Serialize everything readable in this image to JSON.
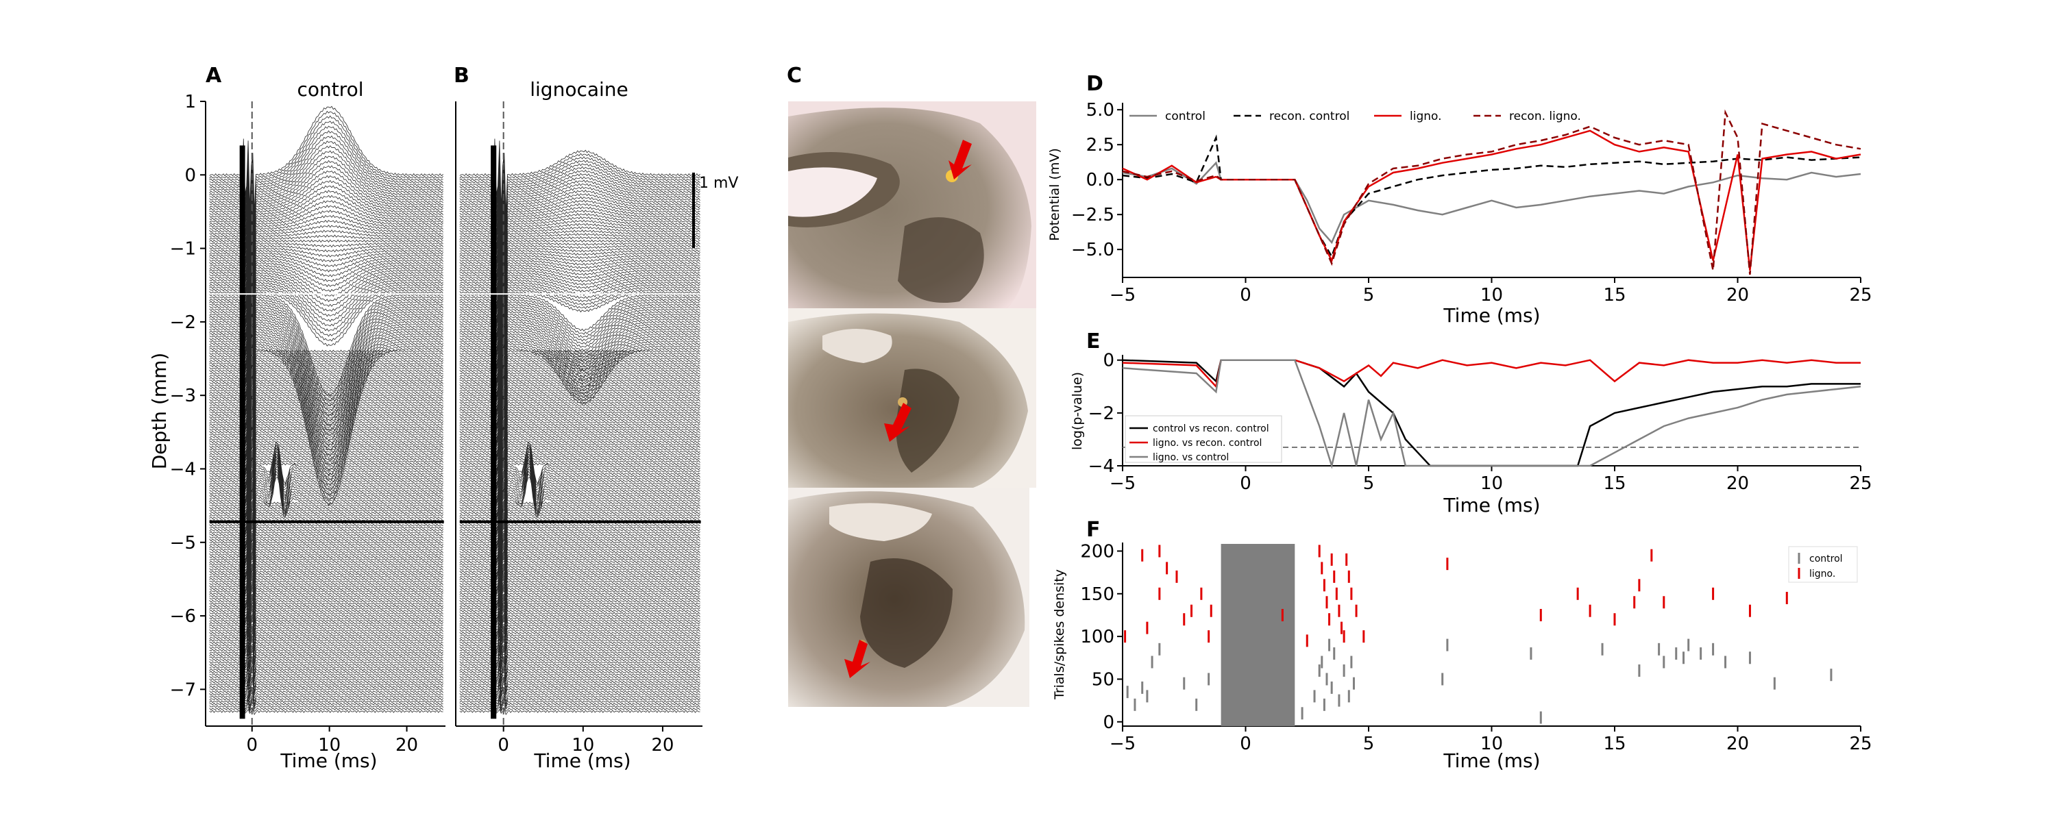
{
  "panels": {
    "A": "A",
    "B": "B",
    "C": "C",
    "D": "D",
    "E": "E",
    "F": "F"
  },
  "colors": {
    "control": "#808080",
    "recon_control": "#000000",
    "ligno": "#e00000",
    "recon_ligno": "#8b0000",
    "trace": "#000000"
  },
  "chart_data": [
    {
      "type": "line",
      "panel": "A",
      "title": "control",
      "xlabel": "Time (ms)",
      "ylabel": "Depth (mm)",
      "xticks": [
        "0",
        "10",
        "20"
      ],
      "yticks": [
        "1",
        "0",
        "−1",
        "−2",
        "−3",
        "−4",
        "−5",
        "−6",
        "−7"
      ],
      "xlim": [
        -6,
        25
      ],
      "ylim": [
        -7.5,
        1
      ],
      "description_series": {
        "n_traces": 220,
        "peak_at_ms": 10,
        "peak_value_mV": 0.85,
        "trough_depth_mm": -2.2
      }
    },
    {
      "type": "line",
      "panel": "B",
      "title": "lignocaine",
      "xlabel": "Time (ms)",
      "xticks": [
        "0",
        "10",
        "20"
      ],
      "xlim": [
        -6,
        25
      ],
      "ylim": [
        -7.5,
        1
      ],
      "scalebar_label": "1 mV"
    },
    {
      "type": "line",
      "panel": "D",
      "xlabel": "Time (ms)",
      "ylabel": "Potential (mV)",
      "xticks": [
        "−5",
        "0",
        "5",
        "10",
        "15",
        "20",
        "25"
      ],
      "yticks": [
        "5.0",
        "2.5",
        "0.0",
        "−2.5",
        "−5.0"
      ],
      "xlim": [
        -5,
        25
      ],
      "ylim": [
        -7,
        5.5
      ],
      "legend": [
        "control",
        "recon. control",
        "ligno.",
        "recon. ligno."
      ],
      "series": [
        {
          "name": "control",
          "x": [
            -5,
            -4,
            -3,
            -2,
            -1.2,
            -1,
            2,
            2.5,
            3,
            3.5,
            4,
            5,
            6,
            7,
            8,
            9,
            10,
            11,
            12,
            13,
            14,
            15,
            16,
            17,
            18,
            19,
            20,
            21,
            22,
            23,
            24,
            25
          ],
          "y": [
            0.5,
            0.2,
            0.8,
            -0.3,
            1.2,
            0,
            0,
            -1.5,
            -3.5,
            -4.5,
            -2.5,
            -1.5,
            -1.8,
            -2.2,
            -2.5,
            -2,
            -1.5,
            -2,
            -1.8,
            -1.5,
            -1.2,
            -1,
            -0.8,
            -1,
            -0.5,
            -0.2,
            0.3,
            0.1,
            0,
            0.5,
            0.2,
            0.4
          ]
        },
        {
          "name": "recon. control",
          "x": [
            -5,
            -4,
            -3,
            -2,
            -1.2,
            -1,
            2,
            2.5,
            3,
            3.5,
            4,
            5,
            6,
            7,
            8,
            9,
            10,
            11,
            12,
            13,
            14,
            15,
            16,
            17,
            18,
            19,
            20,
            21,
            22,
            23,
            24,
            25
          ],
          "y": [
            0.3,
            0.1,
            0.4,
            -0.2,
            3.0,
            0,
            0,
            -2,
            -4,
            -5.5,
            -3,
            -1,
            -0.5,
            0,
            0.3,
            0.5,
            0.7,
            0.8,
            1,
            0.9,
            1.1,
            1.2,
            1.3,
            1.1,
            1.2,
            1.3,
            1.5,
            1.4,
            1.6,
            1.4,
            1.5,
            1.6
          ]
        },
        {
          "name": "ligno.",
          "x": [
            -5,
            -4,
            -3,
            -2,
            -1.2,
            -1,
            2,
            2.5,
            3,
            3.5,
            4,
            5,
            6,
            7,
            8,
            9,
            10,
            11,
            12,
            13,
            14,
            15,
            16,
            17,
            18,
            19,
            20,
            20.5,
            21,
            22,
            23,
            24,
            25
          ],
          "y": [
            0.8,
            0,
            1.0,
            -0.2,
            0.2,
            0,
            0,
            -2,
            -4,
            -5.8,
            -3,
            -0.5,
            0.5,
            0.8,
            1.2,
            1.5,
            1.8,
            2.2,
            2.5,
            3.0,
            3.5,
            2.5,
            2.0,
            2.3,
            2.0,
            -5.8,
            1.8,
            -6.5,
            1.5,
            1.8,
            2.0,
            1.5,
            1.8
          ]
        },
        {
          "name": "recon. ligno.",
          "x": [
            -5,
            -4,
            -3,
            -2,
            -1.2,
            -1,
            2,
            2.5,
            3,
            3.5,
            4,
            5,
            6,
            7,
            8,
            9,
            10,
            11,
            12,
            13,
            14,
            15,
            16,
            17,
            18,
            19,
            19.5,
            20,
            20.5,
            21,
            22,
            23,
            24,
            25
          ],
          "y": [
            0.6,
            0.2,
            0.6,
            -0.1,
            0.3,
            0,
            0,
            -2,
            -4,
            -6.0,
            -3.2,
            -0.3,
            0.8,
            1.0,
            1.5,
            1.8,
            2.0,
            2.5,
            2.8,
            3.2,
            3.8,
            3.0,
            2.5,
            2.8,
            2.5,
            -6.5,
            4.8,
            3.0,
            -6.8,
            4.0,
            3.5,
            3.0,
            2.5,
            2.2
          ]
        }
      ]
    },
    {
      "type": "line",
      "panel": "E",
      "xlabel": "Time (ms)",
      "ylabel": "log(p-value)",
      "xticks": [
        "−5",
        "0",
        "5",
        "10",
        "15",
        "20",
        "25"
      ],
      "yticks": [
        "0",
        "−2",
        "−4"
      ],
      "xlim": [
        -5,
        25
      ],
      "ylim": [
        -4,
        0.2
      ],
      "threshold": -3.3,
      "legend": [
        "control vs recon. control",
        "ligno. vs recon. control",
        "ligno. vs control"
      ],
      "series": [
        {
          "name": "control vs recon. control",
          "x": [
            -5,
            -2,
            -1.2,
            -1,
            2,
            3,
            4,
            4.5,
            5,
            6,
            6.5,
            7,
            7.5,
            8,
            13.5,
            14,
            15,
            16,
            17,
            18,
            19,
            20,
            21,
            22,
            23,
            24,
            25
          ],
          "y": [
            0,
            -0.1,
            -0.8,
            0,
            0,
            -0.3,
            -1.0,
            -0.5,
            -1.2,
            -2.0,
            -3.0,
            -3.5,
            -4,
            -4,
            -4,
            -2.5,
            -2.0,
            -1.8,
            -1.6,
            -1.4,
            -1.2,
            -1.1,
            -1.0,
            -1.0,
            -0.9,
            -0.9,
            -0.9
          ]
        },
        {
          "name": "ligno. vs recon. control",
          "x": [
            -5,
            -2,
            -1.2,
            -1,
            2,
            3,
            4,
            5,
            5.5,
            6,
            7,
            8,
            9,
            10,
            11,
            12,
            13,
            14,
            15,
            16,
            17,
            18,
            19,
            20,
            21,
            22,
            23,
            24,
            25
          ],
          "y": [
            -0.1,
            -0.2,
            -1.0,
            0,
            0,
            -0.3,
            -0.8,
            -0.2,
            -0.6,
            -0.1,
            -0.3,
            0,
            -0.2,
            -0.1,
            -0.3,
            -0.1,
            -0.2,
            0,
            -0.8,
            -0.1,
            -0.2,
            0,
            -0.1,
            -0.1,
            0,
            -0.1,
            0,
            -0.1,
            -0.1
          ]
        },
        {
          "name": "ligno. vs control",
          "x": [
            -5,
            -2,
            -1.2,
            -1,
            2,
            3,
            3.5,
            4,
            4.5,
            5,
            5.5,
            6,
            6.5,
            7,
            13.5,
            14,
            15,
            16,
            17,
            18,
            19,
            20,
            21,
            22,
            23,
            24,
            25
          ],
          "y": [
            -0.3,
            -0.5,
            -1.2,
            0,
            0,
            -2.5,
            -4,
            -2.0,
            -4,
            -1.5,
            -3.0,
            -2.0,
            -4,
            -4,
            -4,
            -4,
            -3.5,
            -3.0,
            -2.5,
            -2.2,
            -2.0,
            -1.8,
            -1.5,
            -1.3,
            -1.2,
            -1.1,
            -1.0
          ]
        }
      ]
    },
    {
      "type": "scatter",
      "panel": "F",
      "xlabel": "Time (ms)",
      "ylabel": "Trials/spikes density",
      "xticks": [
        "−5",
        "0",
        "5",
        "10",
        "15",
        "20",
        "25"
      ],
      "yticks": [
        "200",
        "150",
        "100",
        "50",
        "0"
      ],
      "xlim": [
        -5,
        25
      ],
      "ylim": [
        -5,
        210
      ],
      "shaded_region": [
        -1,
        2
      ],
      "legend": [
        "control",
        "ligno."
      ],
      "series": [
        {
          "name": "control",
          "x": [
            -4.8,
            -4.5,
            -4.2,
            -4,
            -3.8,
            -3.5,
            -2.5,
            -2,
            -1.5,
            2.3,
            2.8,
            3,
            3.1,
            3.2,
            3.3,
            3.4,
            3.5,
            3.6,
            3.8,
            4,
            4.2,
            4.3,
            4.4,
            8,
            8.2,
            11.6,
            12,
            14.5,
            16,
            16.8,
            17,
            17.5,
            17.8,
            18,
            18.5,
            19,
            19.5,
            20.5,
            21.5,
            23.8
          ],
          "y": [
            35,
            20,
            40,
            30,
            70,
            85,
            45,
            20,
            50,
            10,
            30,
            60,
            70,
            20,
            50,
            90,
            40,
            80,
            25,
            60,
            30,
            70,
            45,
            50,
            90,
            80,
            5,
            85,
            60,
            85,
            70,
            80,
            75,
            90,
            80,
            85,
            70,
            75,
            45,
            55
          ]
        },
        {
          "name": "ligno.",
          "x": [
            -4.9,
            -4.2,
            -4,
            -3.5,
            -3.2,
            -3.5,
            -2.8,
            -2.2,
            -2.5,
            -1.8,
            -1.5,
            -1.4,
            1.5,
            2.5,
            3,
            3.1,
            3.2,
            3.3,
            3.4,
            3.5,
            3.6,
            3.7,
            3.8,
            3.9,
            4,
            4.1,
            4.2,
            4.3,
            4.5,
            4.8,
            8.2,
            12,
            13.5,
            14,
            15,
            15.8,
            16,
            16.5,
            17,
            19,
            20.5,
            22
          ],
          "y": [
            100,
            195,
            110,
            200,
            180,
            150,
            170,
            130,
            120,
            150,
            100,
            130,
            125,
            95,
            200,
            180,
            160,
            140,
            120,
            190,
            170,
            150,
            130,
            110,
            100,
            190,
            170,
            150,
            130,
            100,
            185,
            125,
            150,
            130,
            120,
            140,
            160,
            195,
            140,
            150,
            130,
            145
          ]
        }
      ]
    }
  ]
}
